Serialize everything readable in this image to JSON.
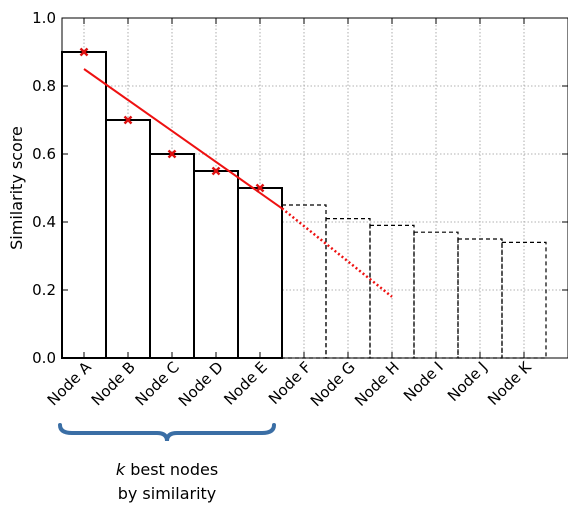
{
  "chart_data": {
    "type": "bar",
    "categories": [
      "Node A",
      "Node B",
      "Node C",
      "Node D",
      "Node E",
      "Node F",
      "Node G",
      "Node H",
      "Node I",
      "Node J",
      "Node K"
    ],
    "values": [
      0.9,
      0.7,
      0.6,
      0.55,
      0.5,
      0.45,
      0.41,
      0.39,
      0.37,
      0.35,
      0.34
    ],
    "selected_count": 5,
    "markers": [
      0.9,
      0.7,
      0.6,
      0.55,
      0.5
    ],
    "trend_line": {
      "solid": [
        [
          0,
          0.85
        ],
        [
          4.5,
          0.44
        ]
      ],
      "dotted": [
        [
          4.5,
          0.44
        ],
        [
          7.0,
          0.18
        ]
      ]
    },
    "xlabel": "",
    "ylabel": "Similarity score",
    "ylim": [
      0.0,
      1.0
    ],
    "yticks": [
      "0.0",
      "0.2",
      "0.4",
      "0.6",
      "0.8",
      "1.0"
    ],
    "grid": true,
    "annotation": {
      "k_symbol": "k",
      "line1_rest": " best nodes",
      "line2": "by similarity"
    },
    "colors": {
      "bars_edge": "#000000",
      "trend": "#ee1111",
      "markers": "#dd1111",
      "brace": "#3a6ea5",
      "grid": "#999999"
    }
  }
}
